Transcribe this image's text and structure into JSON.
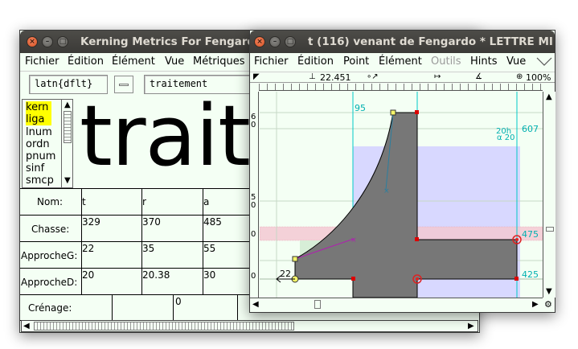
{
  "kerning_window": {
    "title": "Kerning Metrics For Fengardo",
    "menu": [
      {
        "label": "Fichier",
        "key": "F"
      },
      {
        "label": "Édition",
        "key": "É"
      },
      {
        "label": "Élément",
        "key": "l"
      },
      {
        "label": "Vue",
        "key": "V"
      },
      {
        "label": "Métriques",
        "key": "M"
      }
    ],
    "script_field": "latn{dflt}",
    "text_field": "traitement",
    "features": [
      "kern",
      "liga",
      "lnum",
      "ordn",
      "pnum",
      "sinf",
      "smcp"
    ],
    "preview_text": "traite",
    "row_labels": {
      "name": "Nom:",
      "advance": "Chasse:",
      "lsb": "ApprocheG:",
      "rsb": "ApprocheD:",
      "kern": "Crénage:"
    },
    "glyphs": [
      {
        "name": "t",
        "advance": "329",
        "lsb": "22",
        "rsb": "20",
        "kern": ""
      },
      {
        "name": "r",
        "advance": "370",
        "lsb": "35",
        "rsb": "20.38",
        "kern": "0"
      },
      {
        "name": "a",
        "advance": "485",
        "lsb": "55",
        "rsb": "30",
        "kern": ""
      }
    ]
  },
  "glyph_window": {
    "title": "t (116) venant de Fengardo * LETTRE MI",
    "menu": [
      {
        "label": "Fichier",
        "key": "F",
        "enabled": true
      },
      {
        "label": "Édition",
        "key": "É",
        "enabled": true
      },
      {
        "label": "Point",
        "key": "P",
        "enabled": true
      },
      {
        "label": "Élément",
        "key": "l",
        "enabled": true
      },
      {
        "label": "Outils",
        "key": "O",
        "enabled": false
      },
      {
        "label": "Hints",
        "key": "H",
        "enabled": true
      },
      {
        "label": "Vue",
        "key": "V",
        "enabled": true
      }
    ],
    "toolbar": {
      "x_readout": "22.451",
      "zoom": "100%"
    },
    "labels": {
      "top_left": "95",
      "x_height_right": "607",
      "cap_label": "20h",
      "cap_label2": "α 20",
      "label_475": "475",
      "label_425": "425",
      "label_22": "22",
      "ruler_6": "6",
      "ruler_0a": "0",
      "ruler_5": "5",
      "ruler_0b": "0",
      "ruler_0c": "0",
      "ruler_0d": "0"
    },
    "colors": {
      "glyph_fill": "#777777",
      "guide": "#00c8c8",
      "hint_blue": "#d8d8ff",
      "hint_pink": "#f3c9d2"
    }
  }
}
